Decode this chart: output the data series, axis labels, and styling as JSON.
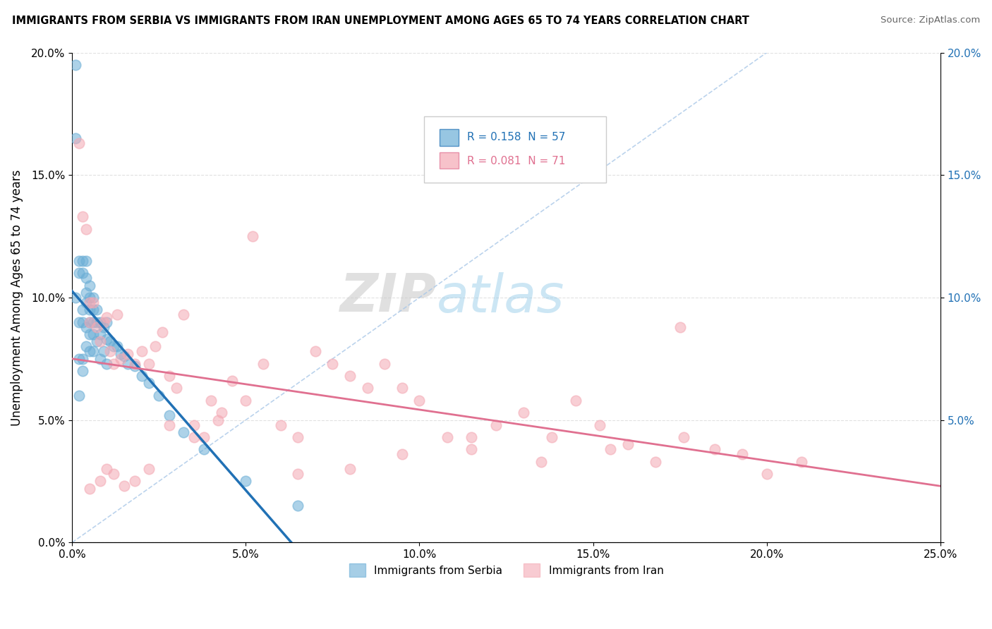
{
  "title": "IMMIGRANTS FROM SERBIA VS IMMIGRANTS FROM IRAN UNEMPLOYMENT AMONG AGES 65 TO 74 YEARS CORRELATION CHART",
  "source": "Source: ZipAtlas.com",
  "ylabel": "Unemployment Among Ages 65 to 74 years",
  "xlim": [
    0.0,
    0.25
  ],
  "ylim": [
    0.0,
    0.2
  ],
  "xticks": [
    0.0,
    0.05,
    0.1,
    0.15,
    0.2,
    0.25
  ],
  "yticks": [
    0.0,
    0.05,
    0.1,
    0.15,
    0.2
  ],
  "xticklabels": [
    "0.0%",
    "5.0%",
    "10.0%",
    "15.0%",
    "20.0%",
    "25.0%"
  ],
  "yticklabels": [
    "0.0%",
    "5.0%",
    "10.0%",
    "15.0%",
    "20.0%"
  ],
  "right_yticklabels": [
    "",
    "5.0%",
    "10.0%",
    "15.0%",
    "20.0%"
  ],
  "serbia_R": 0.158,
  "serbia_N": 57,
  "iran_R": 0.081,
  "iran_N": 71,
  "serbia_color": "#6baed6",
  "iran_color": "#f4a9b4",
  "serbia_line_color": "#2171b5",
  "iran_line_color": "#e07090",
  "watermark_zip": "ZIP",
  "watermark_atlas": "atlas",
  "serbia_x": [
    0.001,
    0.001,
    0.001,
    0.002,
    0.002,
    0.002,
    0.002,
    0.002,
    0.003,
    0.003,
    0.003,
    0.003,
    0.003,
    0.003,
    0.004,
    0.004,
    0.004,
    0.004,
    0.004,
    0.004,
    0.005,
    0.005,
    0.005,
    0.005,
    0.005,
    0.005,
    0.006,
    0.006,
    0.006,
    0.006,
    0.006,
    0.007,
    0.007,
    0.007,
    0.008,
    0.008,
    0.008,
    0.009,
    0.009,
    0.01,
    0.01,
    0.01,
    0.011,
    0.012,
    0.013,
    0.014,
    0.015,
    0.016,
    0.018,
    0.02,
    0.022,
    0.025,
    0.028,
    0.032,
    0.038,
    0.05,
    0.065
  ],
  "serbia_y": [
    0.195,
    0.165,
    0.1,
    0.115,
    0.11,
    0.09,
    0.075,
    0.06,
    0.115,
    0.11,
    0.095,
    0.09,
    0.075,
    0.07,
    0.115,
    0.108,
    0.102,
    0.098,
    0.088,
    0.08,
    0.105,
    0.1,
    0.095,
    0.09,
    0.085,
    0.078,
    0.1,
    0.095,
    0.09,
    0.085,
    0.078,
    0.095,
    0.09,
    0.082,
    0.09,
    0.085,
    0.075,
    0.088,
    0.078,
    0.09,
    0.083,
    0.073,
    0.082,
    0.08,
    0.08,
    0.077,
    0.076,
    0.073,
    0.072,
    0.068,
    0.065,
    0.06,
    0.052,
    0.045,
    0.038,
    0.025,
    0.015
  ],
  "iran_x": [
    0.002,
    0.003,
    0.004,
    0.005,
    0.005,
    0.006,
    0.007,
    0.008,
    0.009,
    0.01,
    0.011,
    0.012,
    0.013,
    0.014,
    0.016,
    0.018,
    0.02,
    0.022,
    0.024,
    0.026,
    0.028,
    0.03,
    0.032,
    0.035,
    0.038,
    0.04,
    0.043,
    0.046,
    0.05,
    0.055,
    0.06,
    0.065,
    0.07,
    0.075,
    0.08,
    0.085,
    0.09,
    0.095,
    0.1,
    0.108,
    0.115,
    0.122,
    0.13,
    0.138,
    0.145,
    0.152,
    0.16,
    0.168,
    0.176,
    0.185,
    0.193,
    0.2,
    0.21,
    0.175,
    0.155,
    0.135,
    0.115,
    0.095,
    0.08,
    0.065,
    0.052,
    0.042,
    0.035,
    0.028,
    0.022,
    0.018,
    0.015,
    0.012,
    0.01,
    0.008,
    0.005
  ],
  "iran_y": [
    0.163,
    0.133,
    0.128,
    0.098,
    0.09,
    0.098,
    0.088,
    0.082,
    0.09,
    0.092,
    0.078,
    0.073,
    0.093,
    0.075,
    0.077,
    0.073,
    0.078,
    0.073,
    0.08,
    0.086,
    0.068,
    0.063,
    0.093,
    0.048,
    0.043,
    0.058,
    0.053,
    0.066,
    0.058,
    0.073,
    0.048,
    0.043,
    0.078,
    0.073,
    0.068,
    0.063,
    0.073,
    0.063,
    0.058,
    0.043,
    0.038,
    0.048,
    0.053,
    0.043,
    0.058,
    0.048,
    0.04,
    0.033,
    0.043,
    0.038,
    0.036,
    0.028,
    0.033,
    0.088,
    0.038,
    0.033,
    0.043,
    0.036,
    0.03,
    0.028,
    0.125,
    0.05,
    0.043,
    0.048,
    0.03,
    0.025,
    0.023,
    0.028,
    0.03,
    0.025,
    0.022
  ]
}
